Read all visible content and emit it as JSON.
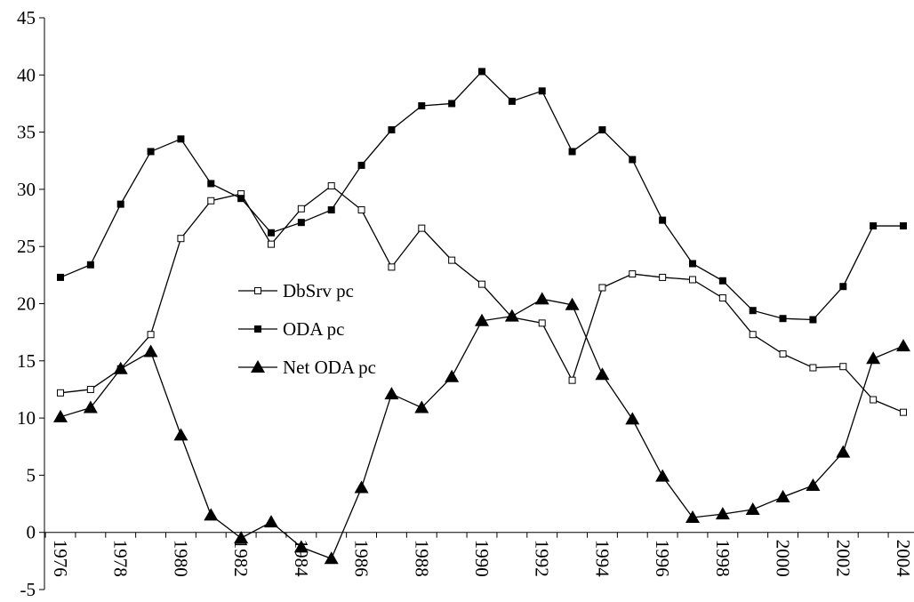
{
  "chart_data": {
    "type": "line",
    "categories": [
      "1976",
      null,
      "1978",
      null,
      "1980",
      null,
      "1982",
      null,
      "1984",
      null,
      "1986",
      null,
      "1988",
      null,
      "1990",
      null,
      "1992",
      null,
      "1994",
      null,
      "1996",
      null,
      "1998",
      null,
      "2000",
      null,
      "2002",
      null,
      "2004"
    ],
    "series": [
      {
        "name": "DbSrv pc",
        "color": "#000000",
        "marker": "square-open",
        "values": [
          12.2,
          12.5,
          14.3,
          17.3,
          25.7,
          29.0,
          29.6,
          25.2,
          28.3,
          30.3,
          28.2,
          23.2,
          26.6,
          23.8,
          21.7,
          18.8,
          18.3,
          13.3,
          21.4,
          22.6,
          22.3,
          22.1,
          20.5,
          17.3,
          15.6,
          14.4,
          14.5,
          11.6,
          10.5
        ]
      },
      {
        "name": "ODA pc",
        "color": "#000000",
        "marker": "square",
        "values": [
          22.3,
          23.4,
          28.7,
          33.3,
          34.4,
          30.5,
          29.2,
          26.2,
          27.1,
          28.2,
          32.1,
          35.2,
          37.3,
          37.5,
          40.3,
          37.7,
          38.6,
          33.3,
          35.2,
          32.6,
          27.3,
          23.5,
          22.0,
          19.4,
          18.7,
          18.6,
          21.5,
          26.8,
          26.8
        ]
      },
      {
        "name": "Net ODA pc",
        "color": "#000000",
        "marker": "triangle",
        "values": [
          10.1,
          10.9,
          14.3,
          15.8,
          8.5,
          1.5,
          -0.5,
          0.9,
          -1.3,
          -2.3,
          3.9,
          12.1,
          10.9,
          13.6,
          18.5,
          18.9,
          20.4,
          19.9,
          13.8,
          9.9,
          4.9,
          1.3,
          1.6,
          2.0,
          3.1,
          4.1,
          7.0,
          15.2,
          16.3
        ]
      }
    ],
    "ylim": [
      -5,
      45
    ],
    "yticks": [
      -5,
      0,
      5,
      10,
      15,
      20,
      25,
      30,
      35,
      40,
      45
    ],
    "grid": false
  }
}
